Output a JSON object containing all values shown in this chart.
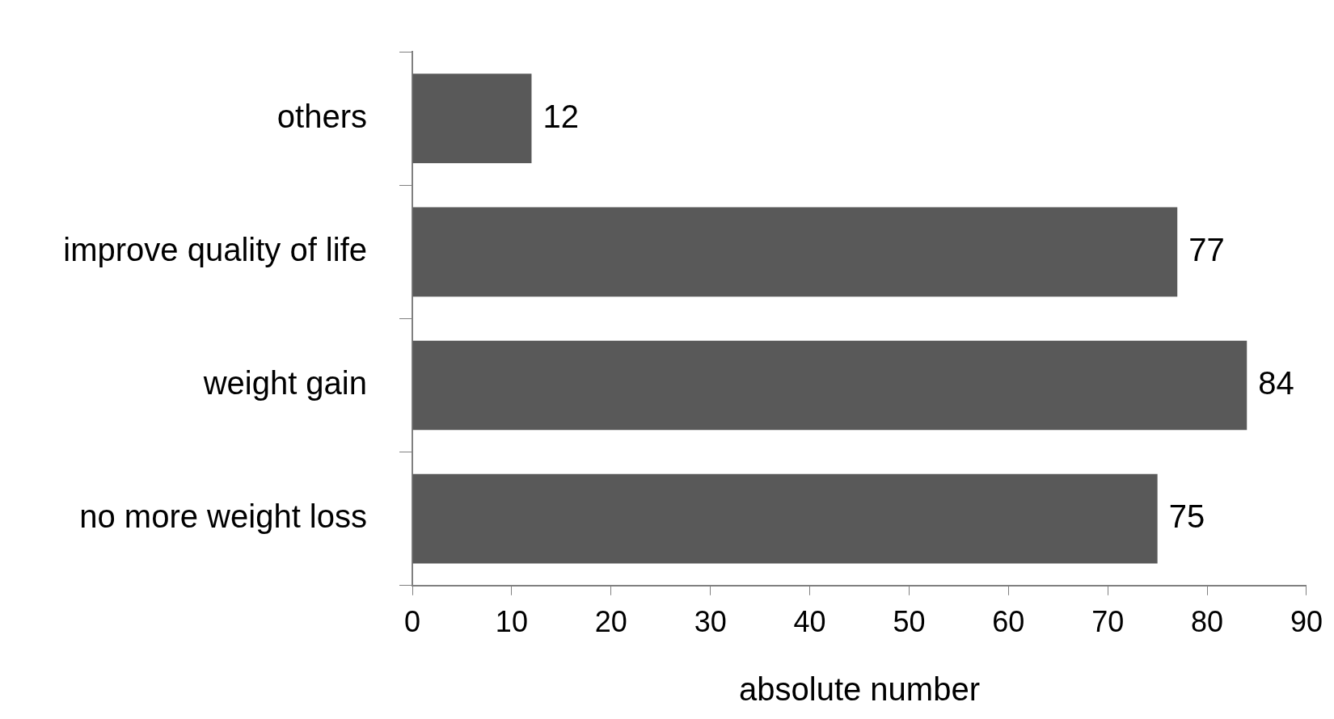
{
  "chart_data": {
    "type": "bar",
    "orientation": "horizontal",
    "xlabel": "absolute number",
    "categories": [
      "others",
      "improve quality of life",
      "weight gain",
      "no more weight loss"
    ],
    "values": [
      12,
      77,
      84,
      75
    ],
    "color": "#595959",
    "xlim": [
      0,
      90
    ],
    "xticks": [
      0,
      10,
      20,
      30,
      40,
      50,
      60,
      70,
      80,
      90
    ],
    "grid": false,
    "legend": false,
    "data_labels": true
  }
}
